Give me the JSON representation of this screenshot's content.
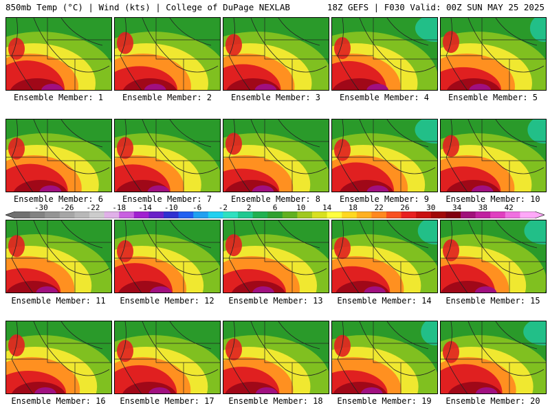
{
  "header": {
    "left": "850mb Temp (°C) | Wind (kts) | College of DuPage NEXLAB",
    "right": "18Z GEFS | F030 Valid: 00Z SUN MAY 25 2025"
  },
  "panels": [
    {
      "label": "Ensemble Member: 1"
    },
    {
      "label": "Ensemble Member: 2"
    },
    {
      "label": "Ensemble Member: 3"
    },
    {
      "label": "Ensemble Member: 4"
    },
    {
      "label": "Ensemble Member: 5"
    },
    {
      "label": "Ensemble Member: 6"
    },
    {
      "label": "Ensemble Member: 7"
    },
    {
      "label": "Ensemble Member: 8"
    },
    {
      "label": "Ensemble Member: 9"
    },
    {
      "label": "Ensemble Member: 10"
    },
    {
      "label": "Ensemble Member: 11"
    },
    {
      "label": "Ensemble Member: 12"
    },
    {
      "label": "Ensemble Member: 13"
    },
    {
      "label": "Ensemble Member: 14"
    },
    {
      "label": "Ensemble Member: 15"
    },
    {
      "label": "Ensemble Member: 16"
    },
    {
      "label": "Ensemble Member: 17"
    },
    {
      "label": "Ensemble Member: 18"
    },
    {
      "label": "Ensemble Member: 19"
    },
    {
      "label": "Ensemble Member: 20"
    }
  ],
  "colorbar": {
    "ticks": [
      "-30",
      "-26",
      "-22",
      "-18",
      "-14",
      "-10",
      "-6",
      "-2",
      "2",
      "6",
      "10",
      "14",
      "18",
      "22",
      "26",
      "30",
      "34",
      "38",
      "42"
    ],
    "colors": [
      "#707070",
      "#828282",
      "#949494",
      "#a6a6a6",
      "#b8b8b8",
      "#cccccc",
      "#e0b0e8",
      "#c860e0",
      "#a020d0",
      "#6a20c8",
      "#3030d0",
      "#2060f0",
      "#20a0f0",
      "#20d0f0",
      "#30e0c0",
      "#20c890",
      "#20b050",
      "#30a030",
      "#60b020",
      "#a0c820",
      "#d8e020",
      "#ffff40",
      "#ffd820",
      "#ffb020",
      "#ff8820",
      "#f85020",
      "#e82020",
      "#c81010",
      "#a00808",
      "#800010",
      "#a0107a",
      "#c020a0",
      "#e040c0",
      "#f070e0",
      "#ffa8f8"
    ],
    "tick_range": [
      -30,
      42
    ],
    "band_range": [
      -34,
      46
    ]
  },
  "legend_colors": {
    "green": "#2a9a2a",
    "lightgreen": "#80c020",
    "yellow": "#f0e830",
    "orange": "#ff9020",
    "red": "#e02020",
    "darkred": "#a00818",
    "magenta": "#a01080",
    "teal": "#20c8a0"
  }
}
